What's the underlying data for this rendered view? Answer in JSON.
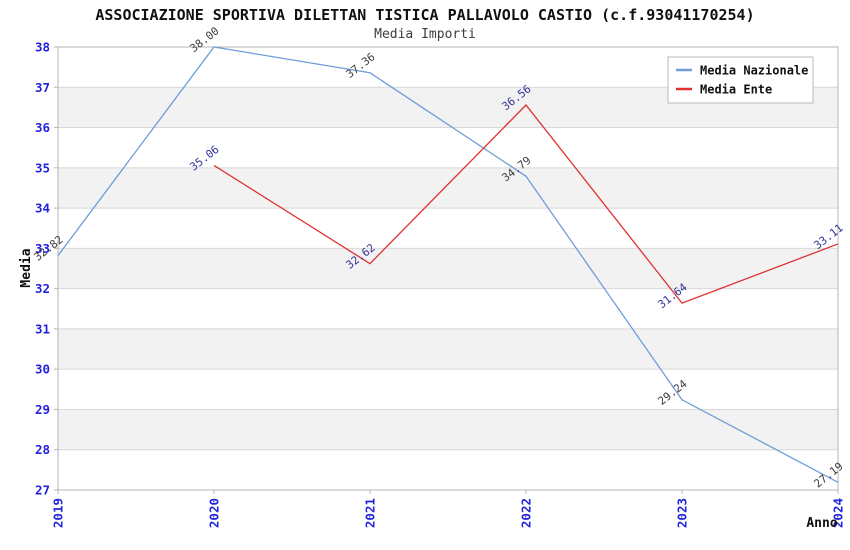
{
  "header": {
    "title": "ASSOCIAZIONE SPORTIVA DILETTAN TISTICA PALLAVOLO CASTIO (c.f.93041170254)",
    "subtitle": "Media Importi"
  },
  "chart_data": {
    "type": "line",
    "x": [
      2019,
      2020,
      2021,
      2022,
      2023,
      2024
    ],
    "series": [
      {
        "name": "Media Nazionale",
        "color": "#6d9ed9",
        "label_color": "#3d3d3d",
        "values": [
          32.82,
          38.0,
          37.36,
          34.79,
          29.24,
          27.19
        ]
      },
      {
        "name": "Media Ente",
        "color": "#e03131",
        "label_color": "#333399",
        "values": [
          null,
          35.06,
          32.62,
          36.56,
          31.64,
          33.11
        ]
      }
    ],
    "xlabel": "Anno",
    "ylabel": "Media",
    "ylim": [
      27,
      38
    ],
    "ytick_step": 1,
    "grid": true,
    "legend_position": "top-right",
    "colors": {
      "tick_label": "#2222dd",
      "axis_label": "#111111",
      "gridline": "#d8d8d8",
      "plot_border": "#b5b5b5",
      "band_even": "#f2f2f2",
      "band_odd": "#ffffff",
      "legend_border": "#bbbbbb",
      "legend_fill": "#ffffff"
    }
  }
}
